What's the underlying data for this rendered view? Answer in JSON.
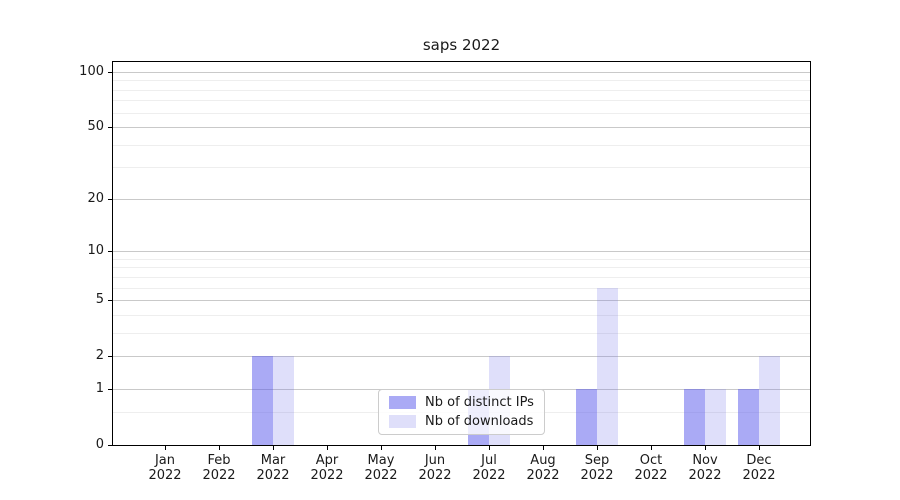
{
  "chart_data": {
    "type": "bar",
    "title": "saps 2022",
    "categories": [
      {
        "month": "Jan",
        "year": "2022"
      },
      {
        "month": "Feb",
        "year": "2022"
      },
      {
        "month": "Mar",
        "year": "2022"
      },
      {
        "month": "Apr",
        "year": "2022"
      },
      {
        "month": "May",
        "year": "2022"
      },
      {
        "month": "Jun",
        "year": "2022"
      },
      {
        "month": "Jul",
        "year": "2022"
      },
      {
        "month": "Aug",
        "year": "2022"
      },
      {
        "month": "Sep",
        "year": "2022"
      },
      {
        "month": "Oct",
        "year": "2022"
      },
      {
        "month": "Nov",
        "year": "2022"
      },
      {
        "month": "Dec",
        "year": "2022"
      }
    ],
    "series": [
      {
        "name": "Nb of distinct IPs",
        "color": "rgba(85,85,235,0.5)",
        "solid_color": "#aaaaf2",
        "values": [
          0,
          0,
          2,
          0,
          0,
          0,
          1,
          0,
          1,
          0,
          1,
          1
        ]
      },
      {
        "name": "Nb of downloads",
        "color": "rgba(110,110,230,0.22)",
        "solid_color": "#dcdcf8",
        "values": [
          0,
          0,
          2,
          0,
          0,
          0,
          2,
          0,
          6,
          0,
          1,
          2
        ]
      }
    ],
    "yscale": "log1p",
    "ylim": [
      0,
      113
    ],
    "yticks": [
      0,
      1,
      2,
      5,
      10,
      20,
      50,
      100
    ],
    "minor_yticks": [
      0.5,
      3,
      4,
      6,
      7,
      8,
      9,
      30,
      40,
      60,
      70,
      80,
      90
    ],
    "grid": true,
    "legend_position": "lower center inside plot",
    "colors": {
      "grid_major": "#c9c9c9",
      "grid_minor": "#eeeeee",
      "spine": "#000000",
      "text": "#1a1a1a",
      "legend_border": "#cccccc",
      "background": "#ffffff"
    }
  }
}
